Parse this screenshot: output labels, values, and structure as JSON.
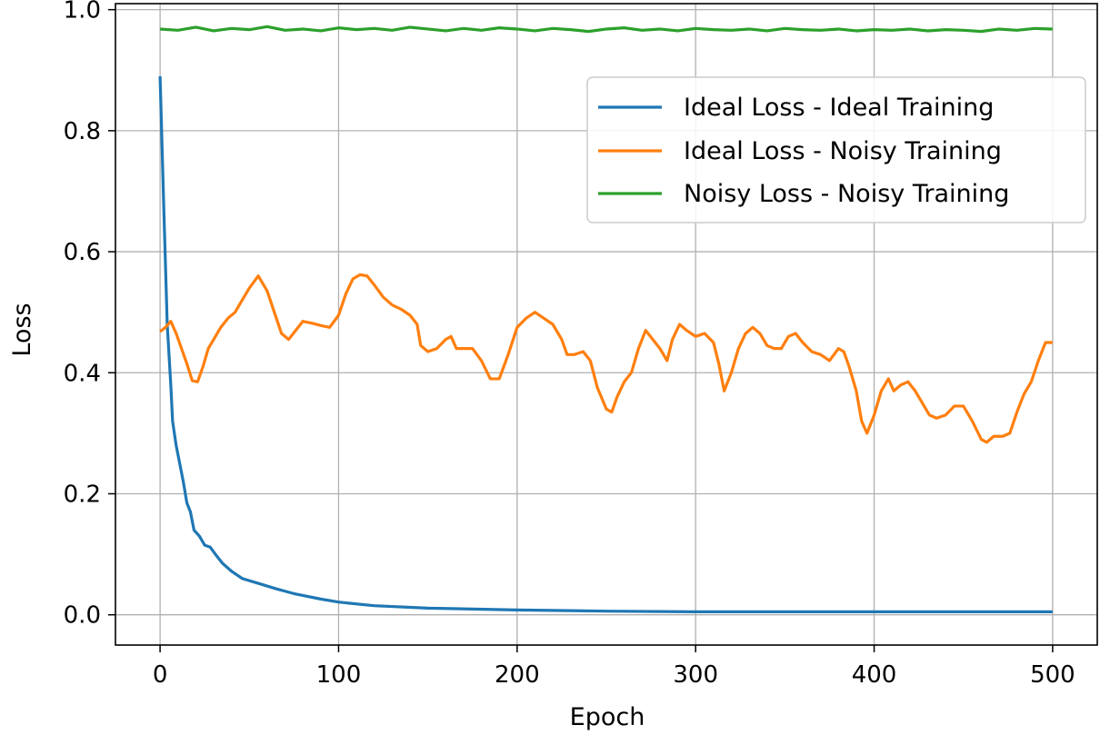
{
  "chart_data": {
    "type": "line",
    "title": "",
    "xlabel": "Epoch",
    "ylabel": "Loss",
    "xlim": [
      -25,
      525
    ],
    "ylim": [
      -0.05,
      1.01
    ],
    "xticks": [
      0,
      100,
      200,
      300,
      400,
      500
    ],
    "xtick_labels": [
      "0",
      "100",
      "200",
      "300",
      "400",
      "500"
    ],
    "yticks": [
      0.0,
      0.2,
      0.4,
      0.6,
      0.8,
      1.0
    ],
    "ytick_labels": [
      "0.0",
      "0.2",
      "0.4",
      "0.6",
      "0.8",
      "1.0"
    ],
    "grid": true,
    "legend_position": "upper right",
    "series": [
      {
        "name": "Ideal Loss - Ideal Training",
        "color": "#1f77b4",
        "points": [
          [
            0,
            0.89
          ],
          [
            2,
            0.68
          ],
          [
            4,
            0.48
          ],
          [
            6,
            0.38
          ],
          [
            7,
            0.32
          ],
          [
            9,
            0.28
          ],
          [
            11,
            0.25
          ],
          [
            13,
            0.22
          ],
          [
            15,
            0.185
          ],
          [
            17,
            0.17
          ],
          [
            19,
            0.14
          ],
          [
            22,
            0.13
          ],
          [
            25,
            0.115
          ],
          [
            28,
            0.112
          ],
          [
            31,
            0.1
          ],
          [
            35,
            0.085
          ],
          [
            40,
            0.072
          ],
          [
            46,
            0.06
          ],
          [
            55,
            0.052
          ],
          [
            65,
            0.043
          ],
          [
            75,
            0.035
          ],
          [
            90,
            0.026
          ],
          [
            100,
            0.021
          ],
          [
            120,
            0.015
          ],
          [
            150,
            0.011
          ],
          [
            200,
            0.008
          ],
          [
            250,
            0.006
          ],
          [
            300,
            0.005
          ],
          [
            400,
            0.005
          ],
          [
            500,
            0.005
          ]
        ]
      },
      {
        "name": "Ideal Loss - Noisy Training",
        "color": "#ff7f0e",
        "points": [
          [
            0,
            0.468
          ],
          [
            3,
            0.475
          ],
          [
            6,
            0.485
          ],
          [
            9,
            0.465
          ],
          [
            12,
            0.44
          ],
          [
            15,
            0.415
          ],
          [
            18,
            0.387
          ],
          [
            21,
            0.385
          ],
          [
            24,
            0.41
          ],
          [
            27,
            0.44
          ],
          [
            30,
            0.455
          ],
          [
            34,
            0.475
          ],
          [
            38,
            0.49
          ],
          [
            42,
            0.5
          ],
          [
            46,
            0.52
          ],
          [
            50,
            0.54
          ],
          [
            55,
            0.56
          ],
          [
            60,
            0.535
          ],
          [
            64,
            0.5
          ],
          [
            68,
            0.465
          ],
          [
            72,
            0.455
          ],
          [
            76,
            0.47
          ],
          [
            80,
            0.485
          ],
          [
            85,
            0.482
          ],
          [
            90,
            0.478
          ],
          [
            95,
            0.475
          ],
          [
            100,
            0.495
          ],
          [
            104,
            0.53
          ],
          [
            108,
            0.555
          ],
          [
            112,
            0.562
          ],
          [
            116,
            0.56
          ],
          [
            120,
            0.545
          ],
          [
            125,
            0.525
          ],
          [
            130,
            0.512
          ],
          [
            135,
            0.505
          ],
          [
            140,
            0.495
          ],
          [
            144,
            0.48
          ],
          [
            146,
            0.445
          ],
          [
            150,
            0.435
          ],
          [
            155,
            0.44
          ],
          [
            160,
            0.455
          ],
          [
            163,
            0.46
          ],
          [
            166,
            0.44
          ],
          [
            170,
            0.44
          ],
          [
            175,
            0.44
          ],
          [
            180,
            0.42
          ],
          [
            185,
            0.39
          ],
          [
            190,
            0.39
          ],
          [
            195,
            0.43
          ],
          [
            200,
            0.475
          ],
          [
            205,
            0.49
          ],
          [
            210,
            0.5
          ],
          [
            215,
            0.49
          ],
          [
            220,
            0.48
          ],
          [
            225,
            0.455
          ],
          [
            228,
            0.43
          ],
          [
            232,
            0.43
          ],
          [
            237,
            0.435
          ],
          [
            241,
            0.42
          ],
          [
            245,
            0.375
          ],
          [
            250,
            0.34
          ],
          [
            253,
            0.335
          ],
          [
            256,
            0.36
          ],
          [
            260,
            0.385
          ],
          [
            264,
            0.4
          ],
          [
            268,
            0.44
          ],
          [
            272,
            0.47
          ],
          [
            276,
            0.455
          ],
          [
            280,
            0.44
          ],
          [
            284,
            0.42
          ],
          [
            287,
            0.455
          ],
          [
            291,
            0.48
          ],
          [
            295,
            0.47
          ],
          [
            300,
            0.46
          ],
          [
            305,
            0.465
          ],
          [
            310,
            0.45
          ],
          [
            313,
            0.415
          ],
          [
            316,
            0.37
          ],
          [
            320,
            0.4
          ],
          [
            324,
            0.44
          ],
          [
            328,
            0.465
          ],
          [
            332,
            0.475
          ],
          [
            336,
            0.465
          ],
          [
            340,
            0.445
          ],
          [
            344,
            0.44
          ],
          [
            348,
            0.44
          ],
          [
            352,
            0.46
          ],
          [
            356,
            0.465
          ],
          [
            360,
            0.45
          ],
          [
            365,
            0.435
          ],
          [
            370,
            0.43
          ],
          [
            375,
            0.42
          ],
          [
            380,
            0.44
          ],
          [
            383,
            0.435
          ],
          [
            386,
            0.41
          ],
          [
            390,
            0.37
          ],
          [
            393,
            0.32
          ],
          [
            396,
            0.3
          ],
          [
            400,
            0.33
          ],
          [
            404,
            0.37
          ],
          [
            408,
            0.39
          ],
          [
            411,
            0.37
          ],
          [
            415,
            0.38
          ],
          [
            419,
            0.385
          ],
          [
            423,
            0.37
          ],
          [
            427,
            0.35
          ],
          [
            431,
            0.33
          ],
          [
            435,
            0.325
          ],
          [
            440,
            0.33
          ],
          [
            445,
            0.345
          ],
          [
            450,
            0.345
          ],
          [
            455,
            0.32
          ],
          [
            460,
            0.29
          ],
          [
            463,
            0.285
          ],
          [
            467,
            0.295
          ],
          [
            472,
            0.295
          ],
          [
            476,
            0.3
          ],
          [
            480,
            0.335
          ],
          [
            484,
            0.365
          ],
          [
            488,
            0.385
          ],
          [
            492,
            0.42
          ],
          [
            496,
            0.45
          ],
          [
            500,
            0.45
          ]
        ]
      },
      {
        "name": "Noisy Loss - Noisy Training",
        "color": "#2ca02c",
        "points": [
          [
            0,
            0.968
          ],
          [
            10,
            0.966
          ],
          [
            20,
            0.971
          ],
          [
            30,
            0.965
          ],
          [
            40,
            0.969
          ],
          [
            50,
            0.967
          ],
          [
            60,
            0.972
          ],
          [
            70,
            0.966
          ],
          [
            80,
            0.968
          ],
          [
            90,
            0.965
          ],
          [
            100,
            0.97
          ],
          [
            110,
            0.967
          ],
          [
            120,
            0.969
          ],
          [
            130,
            0.966
          ],
          [
            140,
            0.971
          ],
          [
            150,
            0.968
          ],
          [
            160,
            0.965
          ],
          [
            170,
            0.969
          ],
          [
            180,
            0.966
          ],
          [
            190,
            0.97
          ],
          [
            200,
            0.968
          ],
          [
            210,
            0.965
          ],
          [
            220,
            0.969
          ],
          [
            230,
            0.967
          ],
          [
            240,
            0.964
          ],
          [
            250,
            0.968
          ],
          [
            260,
            0.97
          ],
          [
            270,
            0.966
          ],
          [
            280,
            0.968
          ],
          [
            290,
            0.965
          ],
          [
            300,
            0.969
          ],
          [
            310,
            0.967
          ],
          [
            320,
            0.966
          ],
          [
            330,
            0.968
          ],
          [
            340,
            0.965
          ],
          [
            350,
            0.969
          ],
          [
            360,
            0.967
          ],
          [
            370,
            0.966
          ],
          [
            380,
            0.968
          ],
          [
            390,
            0.965
          ],
          [
            400,
            0.967
          ],
          [
            410,
            0.966
          ],
          [
            420,
            0.968
          ],
          [
            430,
            0.965
          ],
          [
            440,
            0.967
          ],
          [
            450,
            0.966
          ],
          [
            460,
            0.964
          ],
          [
            470,
            0.968
          ],
          [
            480,
            0.966
          ],
          [
            490,
            0.969
          ],
          [
            500,
            0.968
          ]
        ]
      }
    ]
  }
}
